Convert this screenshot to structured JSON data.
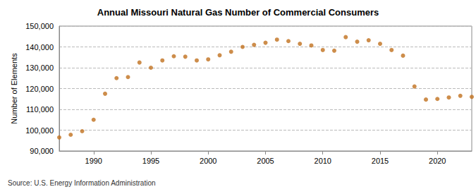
{
  "chart_data": {
    "type": "scatter",
    "title": "Annual Missouri Natural Gas Number of Commercial Consumers",
    "y_label": "Number of Elements",
    "source": "Source: U.S. Energy Information Administration",
    "x": [
      1987,
      1988,
      1989,
      1990,
      1991,
      1992,
      1993,
      1994,
      1995,
      1996,
      1997,
      1998,
      1999,
      2000,
      2001,
      2002,
      2003,
      2004,
      2005,
      2006,
      2007,
      2008,
      2009,
      2010,
      2011,
      2012,
      2013,
      2014,
      2015,
      2016,
      2017,
      2018,
      2019,
      2020,
      2021,
      2022,
      2023
    ],
    "values": [
      96500,
      97800,
      99500,
      105000,
      117500,
      125000,
      125500,
      132500,
      130000,
      133500,
      135500,
      135300,
      133500,
      134000,
      136000,
      137700,
      140000,
      141000,
      142000,
      143500,
      142800,
      141500,
      140700,
      138500,
      138200,
      144700,
      142500,
      143200,
      141500,
      138500,
      135800,
      121000,
      114700,
      115000,
      115700,
      116500,
      116000
    ],
    "color": "#c0701e",
    "marker": "circle",
    "xlim": [
      1987,
      2023
    ],
    "xticks": [
      1990,
      1995,
      2000,
      2005,
      2010,
      2015,
      2020
    ],
    "ylim": [
      90000,
      150000
    ],
    "yticks": [
      {
        "value": 90000,
        "label": "90,000"
      },
      {
        "value": 100000,
        "label": "100,000"
      },
      {
        "value": 110000,
        "label": "110,000"
      },
      {
        "value": 120000,
        "label": "120,000"
      },
      {
        "value": 130000,
        "label": "130,000"
      },
      {
        "value": 140000,
        "label": "140,000"
      },
      {
        "value": 150000,
        "label": "150,000"
      }
    ],
    "grid": true
  }
}
